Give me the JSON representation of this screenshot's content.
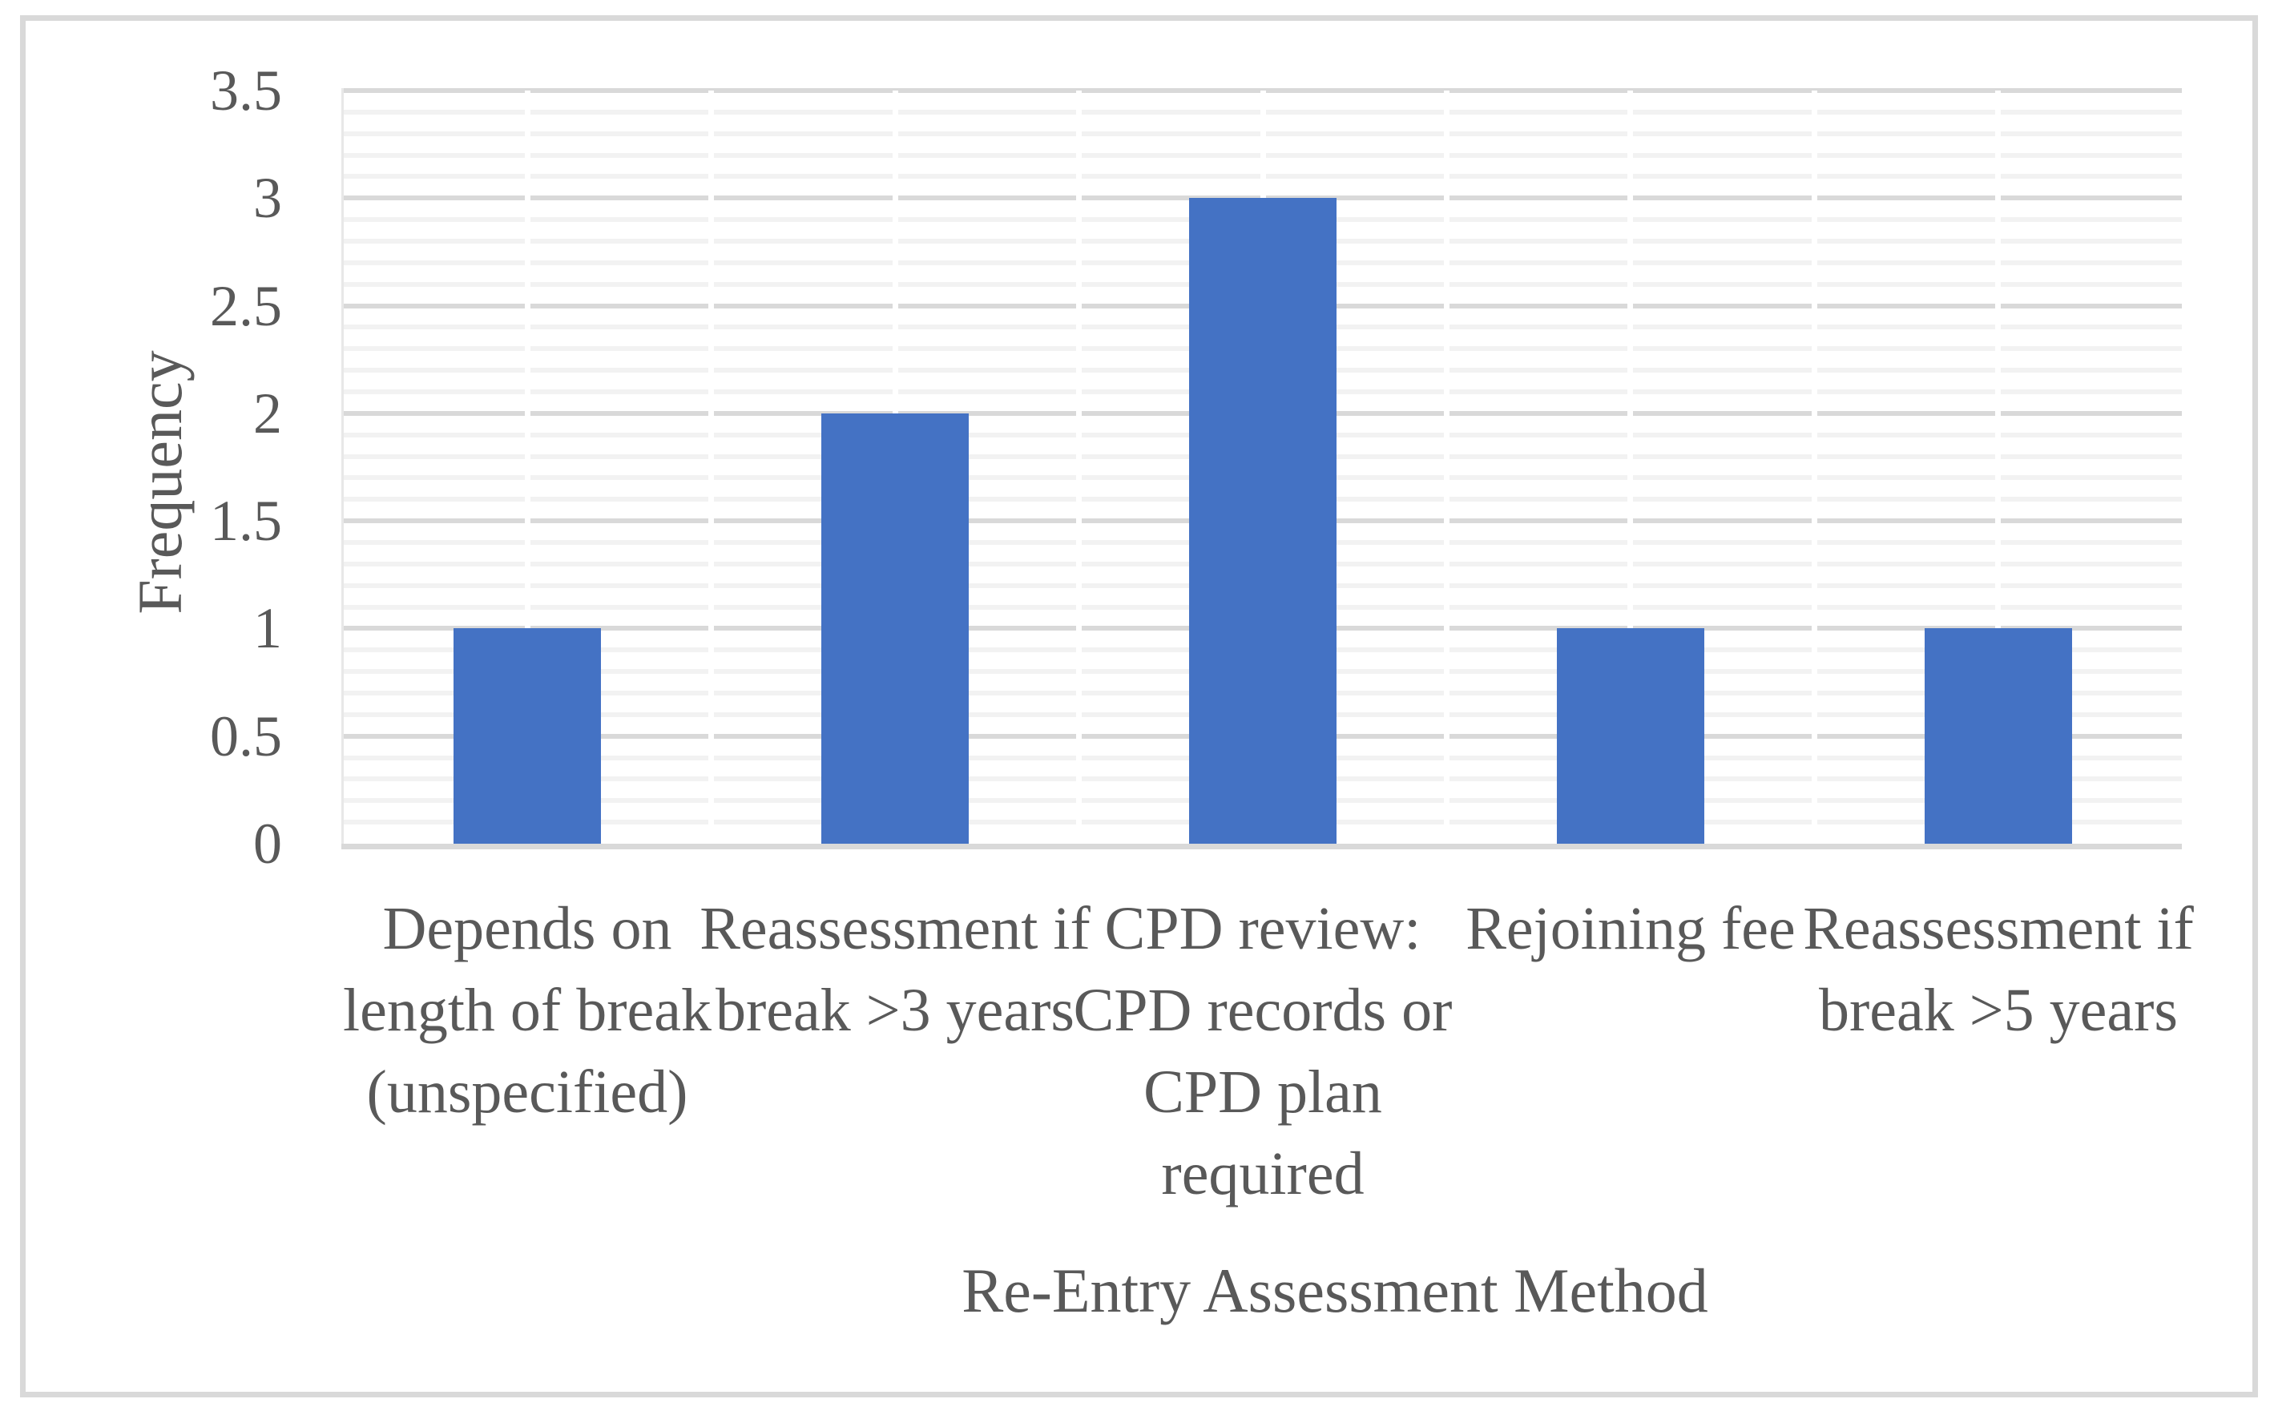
{
  "chart_data": {
    "type": "bar",
    "title": "",
    "categories": [
      "Depends on length of break (unspecified)",
      "Reassessment if break >3 years",
      "CPD review: CPD records or CPD plan required",
      "Rejoining fee",
      "Reassessment if break >5 years"
    ],
    "values": [
      1,
      2,
      3,
      1,
      1
    ],
    "xlabel": "Re-Entry Assessment Method",
    "ylabel": "Frequency",
    "ylim": [
      0,
      3.5
    ],
    "y_major_unit": 0.5,
    "y_minor_unit": 0.1,
    "ytick_labels": [
      "0",
      "0.5",
      "1",
      "1.5",
      "2",
      "2.5",
      "3",
      "3.5"
    ],
    "legend": "none",
    "grid": "horizontal major and minor on; vertical white gridlines at category half-intervals",
    "colors": {
      "bar_fill": "#4472C4",
      "major_gridline": "#D9D9D9",
      "minor_gridline": "#F2F2F2",
      "axis_line": "#D9D9D9",
      "vertical_axis_line": "#E8E8E8",
      "text": "#595959",
      "figure_border": "#D9D9D9",
      "background": "#FFFFFF"
    }
  }
}
